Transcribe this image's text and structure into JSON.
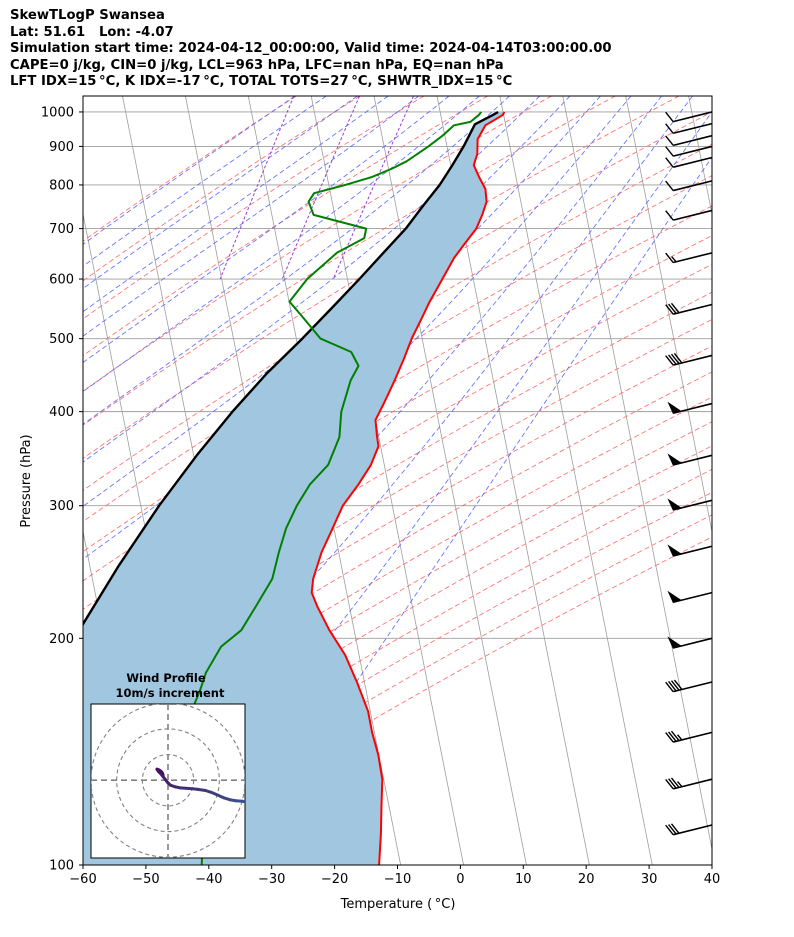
{
  "header": {
    "lines": [
      "SkewTLogP Swansea",
      "Lat: 51.61   Lon: -4.07",
      "Simulation start time: 2024-04-12_00:00:00, Valid time: 2024-04-14T03:00:00.00",
      "CAPE=0 j/kg, CIN=0 j/kg, LCL=963 hPa, LFC=nan hPa, EQ=nan hPa",
      "LFT IDX=15 °C, K IDX=-17 °C, TOTAL TOTS=27 °C, SHWTR_IDX=15 °C"
    ]
  },
  "colors": {
    "temperature": "#ff0000",
    "dewpoint": "#008000",
    "parcel": "#000000",
    "cape_fill": "#a1c6e0",
    "dry_adiabat": "#ff6666",
    "moist_adiabat": "#4d5eff",
    "mixing_ratio": "#9a40c8",
    "isotherm": "#9e9e9e"
  },
  "chart_data": {
    "type": "skewt-logp",
    "xlabel": "Temperature ( °C)",
    "ylabel": "Pressure (hPa)",
    "xlim": [
      -60,
      40
    ],
    "ylim": [
      1050,
      100
    ],
    "x_ticks": [
      -60,
      -50,
      -40,
      -30,
      -20,
      -10,
      0,
      10,
      20,
      30,
      40
    ],
    "y_ticks": [
      1000,
      900,
      800,
      700,
      600,
      500,
      400,
      300,
      200,
      100
    ],
    "y_scale": "log",
    "grid": true,
    "series": [
      {
        "role": "temperature",
        "points": [
          [
            1000,
            7.0
          ],
          [
            990,
            6.8
          ],
          [
            960,
            4.4
          ],
          [
            920,
            3.6
          ],
          [
            900,
            3.8
          ],
          [
            880,
            4.0
          ],
          [
            850,
            3.8
          ],
          [
            820,
            5.0
          ],
          [
            790,
            6.4
          ],
          [
            760,
            7.0
          ],
          [
            730,
            6.7
          ],
          [
            700,
            6.2
          ],
          [
            670,
            4.9
          ],
          [
            640,
            3.6
          ],
          [
            600,
            2.4
          ],
          [
            560,
            1.1
          ],
          [
            530,
            0.3
          ],
          [
            500,
            -0.6
          ],
          [
            470,
            -1.2
          ],
          [
            440,
            -2.0
          ],
          [
            410,
            -3.0
          ],
          [
            390,
            -3.8
          ],
          [
            370,
            -3.0
          ],
          [
            360,
            -2.5
          ],
          [
            340,
            -3.1
          ],
          [
            320,
            -4.5
          ],
          [
            300,
            -6.3
          ],
          [
            280,
            -7.2
          ],
          [
            260,
            -8.2
          ],
          [
            240,
            -8.7
          ],
          [
            230,
            -8.5
          ],
          [
            220,
            -7.1
          ],
          [
            205,
            -4.5
          ],
          [
            190,
            -1.2
          ],
          [
            175,
            1.5
          ],
          [
            160,
            4.2
          ],
          [
            150,
            5.5
          ],
          [
            140,
            7.2
          ],
          [
            130,
            8.6
          ],
          [
            120,
            9.3
          ],
          [
            110,
            10.1
          ],
          [
            100,
            10.8
          ]
        ]
      },
      {
        "role": "dewpoint",
        "points": [
          [
            1000,
            3.3
          ],
          [
            990,
            3.0
          ],
          [
            970,
            1.9
          ],
          [
            960,
            -0.6
          ],
          [
            930,
            -2.1
          ],
          [
            900,
            -4.0
          ],
          [
            860,
            -7.0
          ],
          [
            840,
            -9.2
          ],
          [
            820,
            -12.0
          ],
          [
            800,
            -16.0
          ],
          [
            780,
            -20.7
          ],
          [
            760,
            -21.3
          ],
          [
            730,
            -20.1
          ],
          [
            700,
            -11.3
          ],
          [
            680,
            -11.3
          ],
          [
            650,
            -15.2
          ],
          [
            600,
            -19.1
          ],
          [
            560,
            -21.2
          ],
          [
            530,
            -18.2
          ],
          [
            500,
            -15.1
          ],
          [
            480,
            -9.8
          ],
          [
            460,
            -8.2
          ],
          [
            440,
            -9.0
          ],
          [
            400,
            -9.5
          ],
          [
            370,
            -9.0
          ],
          [
            340,
            -9.9
          ],
          [
            320,
            -12.2
          ],
          [
            300,
            -13.6
          ],
          [
            280,
            -14.6
          ],
          [
            260,
            -15.0
          ],
          [
            240,
            -15.2
          ],
          [
            220,
            -17.0
          ],
          [
            205,
            -18.5
          ],
          [
            195,
            -21.2
          ],
          [
            180,
            -22.8
          ],
          [
            170,
            -23.2
          ],
          [
            160,
            -23.9
          ],
          [
            150,
            -24.3
          ],
          [
            140,
            -23.3
          ],
          [
            130,
            -21.4
          ],
          [
            120,
            -19.5
          ],
          [
            110,
            -18.2
          ],
          [
            100,
            -17.4
          ]
        ]
      },
      {
        "role": "parcel",
        "points": [
          [
            1000,
            6.0
          ],
          [
            990,
            5.2
          ],
          [
            963,
            2.7
          ],
          [
            940,
            2.3
          ],
          [
            900,
            1.6
          ],
          [
            850,
            0.4
          ],
          [
            800,
            -1.0
          ],
          [
            750,
            -3.0
          ],
          [
            700,
            -5.0
          ],
          [
            650,
            -7.8
          ],
          [
            600,
            -10.8
          ],
          [
            550,
            -14.2
          ],
          [
            500,
            -18.0
          ],
          [
            450,
            -22.5
          ],
          [
            400,
            -26.8
          ],
          [
            350,
            -31.1
          ],
          [
            300,
            -35.5
          ],
          [
            250,
            -40.0
          ],
          [
            200,
            -44.8
          ],
          [
            150,
            -49.6
          ],
          [
            120,
            -51.9
          ],
          [
            100,
            -53.3
          ]
        ]
      }
    ],
    "wind_barbs": [
      {
        "p": 1000,
        "flags": 0,
        "full": 1,
        "half": 0
      },
      {
        "p": 965,
        "flags": 0,
        "full": 1,
        "half": 0
      },
      {
        "p": 930,
        "flags": 0,
        "full": 1,
        "half": 0
      },
      {
        "p": 900,
        "flags": 0,
        "full": 1,
        "half": 0
      },
      {
        "p": 870,
        "flags": 0,
        "full": 1,
        "half": 0
      },
      {
        "p": 810,
        "flags": 0,
        "full": 1,
        "half": 0
      },
      {
        "p": 740,
        "flags": 0,
        "full": 1,
        "half": 0
      },
      {
        "p": 650,
        "flags": 0,
        "full": 1,
        "half": 1
      },
      {
        "p": 555,
        "flags": 0,
        "full": 3,
        "half": 0
      },
      {
        "p": 475,
        "flags": 0,
        "full": 4,
        "half": 0
      },
      {
        "p": 410,
        "flags": 1,
        "full": 0,
        "half": 0
      },
      {
        "p": 350,
        "flags": 1,
        "full": 0,
        "half": 0
      },
      {
        "p": 305,
        "flags": 1,
        "full": 0,
        "half": 0
      },
      {
        "p": 265,
        "flags": 1,
        "full": 0,
        "half": 0
      },
      {
        "p": 230,
        "flags": 1,
        "full": 0,
        "half": 0
      },
      {
        "p": 200,
        "flags": 1,
        "full": 0,
        "half": 0
      },
      {
        "p": 175,
        "flags": 0,
        "full": 4,
        "half": 0
      },
      {
        "p": 150,
        "flags": 0,
        "full": 3,
        "half": 1
      },
      {
        "p": 130,
        "flags": 0,
        "full": 3,
        "half": 1
      },
      {
        "p": 113,
        "flags": 0,
        "full": 3,
        "half": 0
      }
    ],
    "hodograph": {
      "title": "Wind Profile",
      "subtitle": "10m/s increment",
      "points": [
        [
          -1.9,
          2.0
        ],
        [
          -2.3,
          3.0
        ],
        [
          -2.9,
          3.6
        ],
        [
          -3.5,
          4.0
        ],
        [
          -4.3,
          4.3
        ],
        [
          -4.1,
          4.0
        ],
        [
          -3.6,
          3.3
        ],
        [
          -2.8,
          2.5
        ],
        [
          -1.9,
          1.4
        ],
        [
          -0.2,
          -0.8
        ],
        [
          0.9,
          -1.9
        ],
        [
          2.9,
          -2.6
        ],
        [
          4.9,
          -3.0
        ],
        [
          8.2,
          -3.2
        ],
        [
          11.3,
          -3.5
        ],
        [
          14.6,
          -4.0
        ],
        [
          16.8,
          -4.7
        ],
        [
          19.4,
          -5.8
        ],
        [
          21.9,
          -6.9
        ],
        [
          24.1,
          -7.6
        ],
        [
          26.3,
          -8.0
        ],
        [
          29.0,
          -8.2
        ],
        [
          30.7,
          -8.6
        ]
      ]
    }
  }
}
